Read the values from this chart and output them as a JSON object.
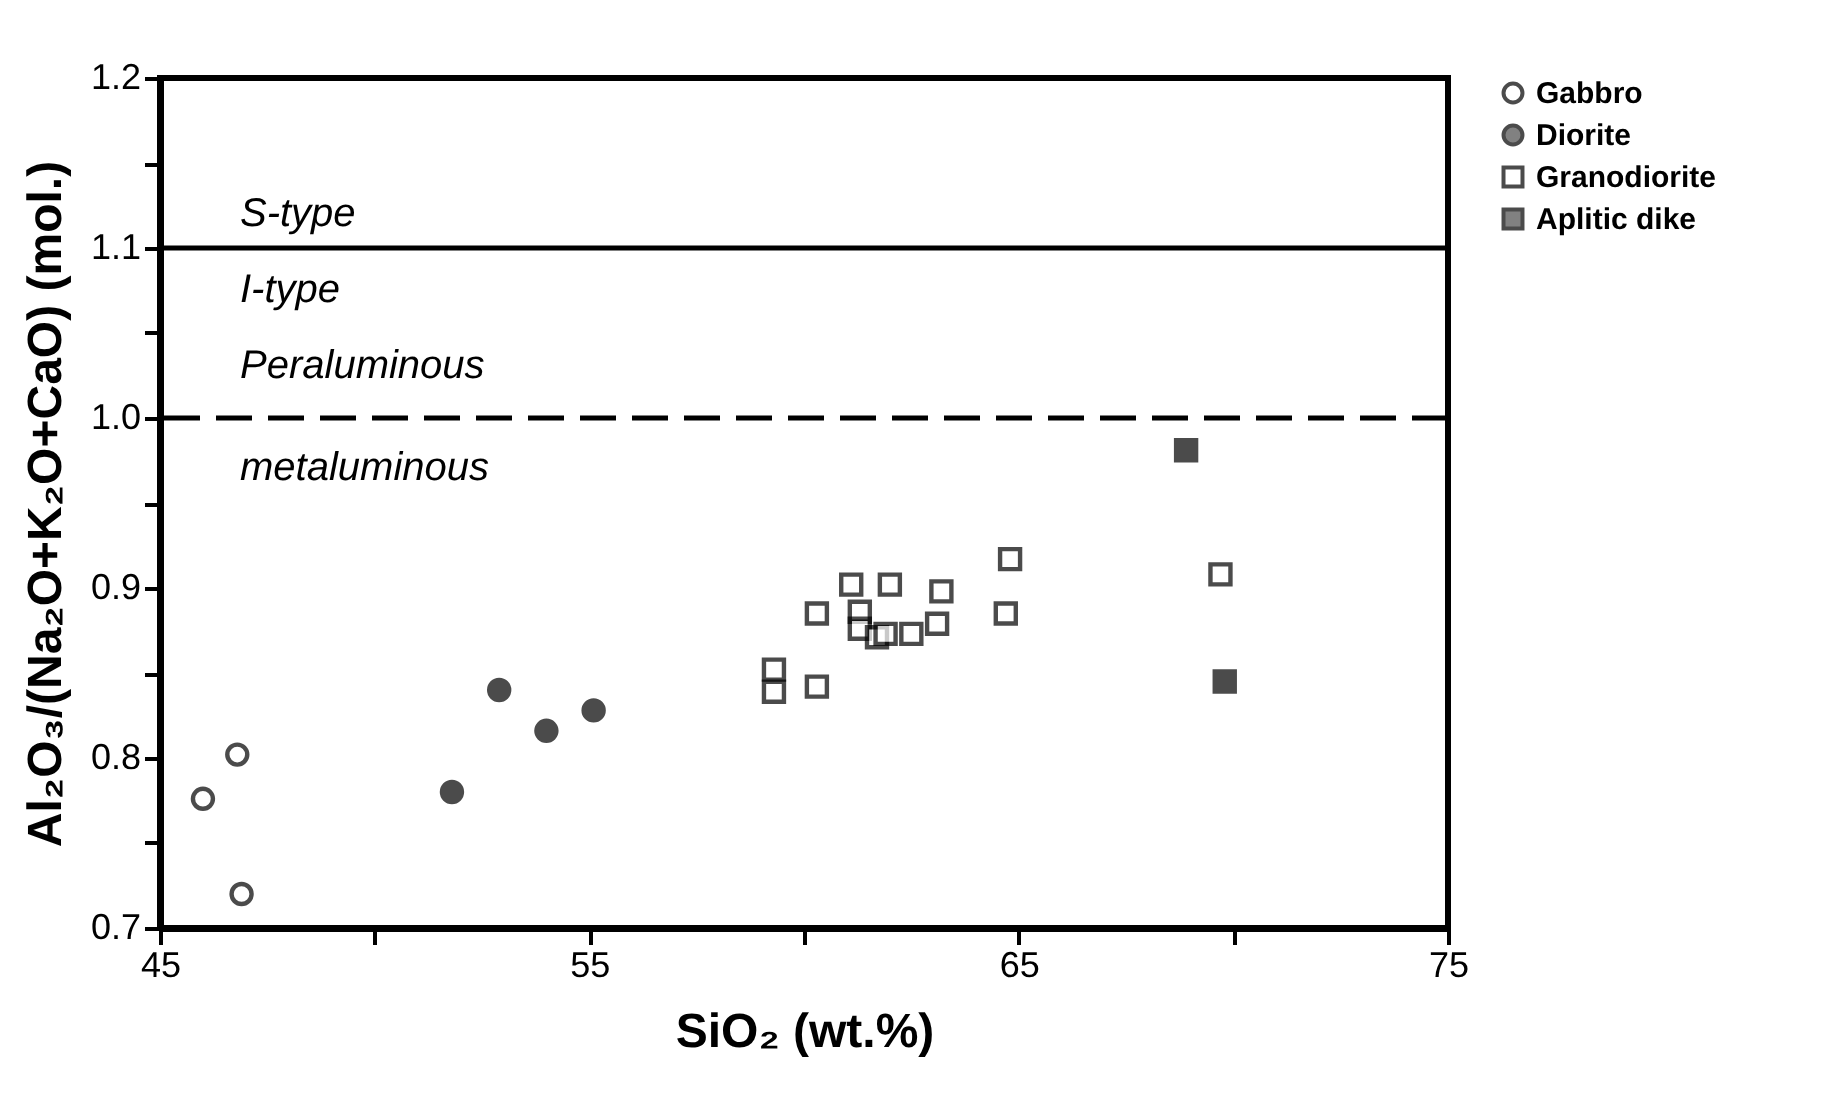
{
  "chart_data": {
    "type": "scatter",
    "xlabel": "SiO₂ (wt.%)",
    "ylabel": "Al₂O₃/(Na₂O+K₂O+CaO) (mol.)",
    "xlim": [
      45,
      75
    ],
    "xticks": [
      45,
      {
        "value": 50,
        "label": null
      },
      55,
      {
        "value": 60,
        "label": null
      },
      65,
      {
        "value": 70,
        "label": null
      },
      75
    ],
    "ylim": [
      0.7,
      1.2
    ],
    "yticks": [
      {
        "value": 0.7,
        "label": "0.7"
      },
      {
        "value": 0.75,
        "label": null
      },
      {
        "value": 0.8,
        "label": "0.8"
      },
      {
        "value": 0.85,
        "label": null
      },
      {
        "value": 0.9,
        "label": "0.9"
      },
      {
        "value": 0.95,
        "label": null
      },
      {
        "value": 1.0,
        "label": "1.0"
      },
      {
        "value": 1.05,
        "label": null
      },
      {
        "value": 1.1,
        "label": "1.1"
      },
      {
        "value": 1.15,
        "label": null
      },
      {
        "value": 1.2,
        "label": "1.2"
      }
    ],
    "legend": "top right",
    "grid": false,
    "series": [
      {
        "name": "Gabbro",
        "color": "#ffffff",
        "marker": "circle",
        "x": [
          46.0,
          46.8,
          46.9
        ],
        "values": [
          0.776,
          0.802,
          0.72
        ]
      },
      {
        "name": "Diorite",
        "color": "#000000",
        "marker": "circle",
        "x": [
          51.8,
          52.9,
          54.0,
          55.1
        ],
        "values": [
          0.78,
          0.84,
          0.816,
          0.828
        ]
      },
      {
        "name": "Granodiorite",
        "color": "#ffffff",
        "marker": "square",
        "x": [
          59.3,
          59.3,
          60.3,
          60.3,
          61.1,
          62.0,
          61.3,
          61.3,
          61.7,
          61.9,
          62.5,
          63.1,
          63.2,
          64.8,
          64.7,
          69.7
        ],
        "values": [
          0.852,
          0.839,
          0.842,
          0.885,
          0.902,
          0.902,
          0.886,
          0.876,
          0.871,
          0.873,
          0.873,
          0.879,
          0.898,
          0.917,
          0.885,
          0.908
        ]
      },
      {
        "name": "Aplitic dike",
        "color": "#000000",
        "marker": "square",
        "x": [
          68.9,
          69.8
        ],
        "values": [
          0.981,
          0.845
        ]
      }
    ],
    "ref_lines": [
      {
        "axis": "y",
        "value": 1.1,
        "line_style": "solid",
        "color": "#000000"
      },
      {
        "axis": "y",
        "value": 1.0,
        "line_style": "dashed",
        "color": "#000000"
      }
    ],
    "annotations": [
      "S-type",
      "I-type",
      "Peraluminous",
      "metaluminous"
    ]
  }
}
